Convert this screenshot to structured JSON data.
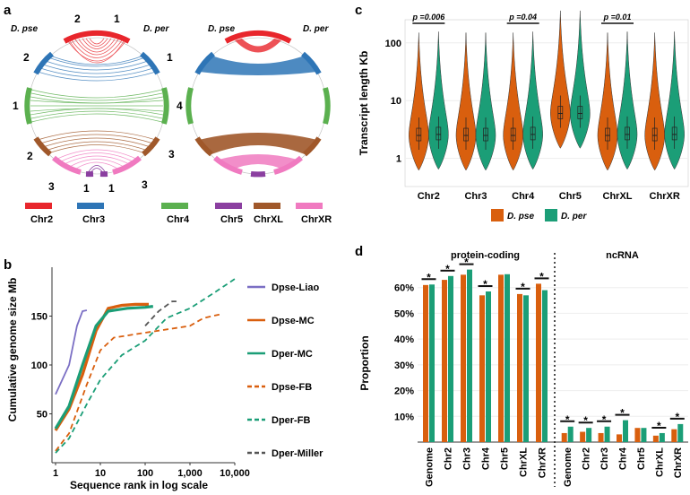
{
  "figure": {
    "panel_labels": {
      "a": "a",
      "b": "b",
      "c": "c",
      "d": "d"
    }
  },
  "panel_a": {
    "species_left": "D. pse",
    "species_right": "D. per",
    "species_left_2": "D. pse",
    "species_right_2": "D. per",
    "numbers": [
      "2",
      "1",
      "2",
      "1",
      "1",
      "4",
      "2",
      "3",
      "3",
      "1",
      "1",
      "3"
    ],
    "legend": [
      {
        "label": "Chr2",
        "color": "#e8262c"
      },
      {
        "label": "Chr3",
        "color": "#2e75b6"
      },
      {
        "label": "Chr4",
        "color": "#5bb04f"
      },
      {
        "label": "Chr5",
        "color": "#8b3fa0"
      },
      {
        "label": "ChrXL",
        "color": "#a0582a"
      },
      {
        "label": "ChrXR",
        "color": "#f07ac0"
      }
    ]
  },
  "chart_data": [
    {
      "id": "b",
      "type": "line",
      "title": "",
      "xlabel": "Sequence rank in log scale",
      "ylabel": "Cumulative genome size Mb",
      "xscale": "log",
      "xlim": [
        1,
        10000
      ],
      "ylim": [
        0,
        200
      ],
      "xticks": [
        "1",
        "10",
        "100",
        "1,000",
        "10,000"
      ],
      "yticks": [
        "50",
        "100",
        "150"
      ],
      "series": [
        {
          "name": "Dpse-Liao",
          "color": "#7b6fc4",
          "dash": "solid",
          "points": [
            [
              1,
              70
            ],
            [
              2,
              100
            ],
            [
              3,
              140
            ],
            [
              4,
              155
            ],
            [
              5,
              156
            ]
          ]
        },
        {
          "name": "Dpse-MC",
          "color": "#d95f0e",
          "dash": "solid",
          "points": [
            [
              1,
              33
            ],
            [
              2,
              55
            ],
            [
              4,
              90
            ],
            [
              8,
              135
            ],
            [
              15,
              158
            ],
            [
              30,
              161
            ],
            [
              60,
              162
            ],
            [
              120,
              162
            ]
          ]
        },
        {
          "name": "Dper-MC",
          "color": "#1b9e77",
          "dash": "solid",
          "points": [
            [
              1,
              35
            ],
            [
              2,
              58
            ],
            [
              4,
              100
            ],
            [
              8,
              140
            ],
            [
              15,
              155
            ],
            [
              40,
              158
            ],
            [
              100,
              159
            ],
            [
              150,
              160
            ]
          ]
        },
        {
          "name": "Dpse-FB",
          "color": "#d95f0e",
          "dash": "dashed",
          "points": [
            [
              1,
              12
            ],
            [
              2,
              30
            ],
            [
              5,
              80
            ],
            [
              10,
              115
            ],
            [
              20,
              128
            ],
            [
              100,
              133
            ],
            [
              1000,
              140
            ],
            [
              2000,
              148
            ],
            [
              5000,
              152
            ]
          ]
        },
        {
          "name": "Dper-FB",
          "color": "#1b9e77",
          "dash": "dashed",
          "points": [
            [
              1,
              10
            ],
            [
              2,
              25
            ],
            [
              5,
              60
            ],
            [
              10,
              85
            ],
            [
              30,
              110
            ],
            [
              100,
              125
            ],
            [
              300,
              148
            ],
            [
              1000,
              158
            ],
            [
              3000,
              172
            ],
            [
              10000,
              188
            ]
          ]
        },
        {
          "name": "Dper-Miller",
          "color": "#555555",
          "dash": "dashed",
          "points": [
            [
              100,
              140
            ],
            [
              200,
              155
            ],
            [
              400,
              165
            ],
            [
              500,
              165
            ]
          ]
        }
      ]
    },
    {
      "id": "c",
      "type": "violin",
      "xlabel": "",
      "ylabel": "Transcript length Kb",
      "yscale": "log",
      "yticks": [
        "1",
        "10",
        "100"
      ],
      "categories": [
        "Chr2",
        "Chr3",
        "Chr4",
        "Chr5",
        "ChrXL",
        "ChrXR"
      ],
      "series": [
        {
          "name": "D. pse",
          "color": "#d95f0e",
          "medians": [
            2.5,
            2.5,
            2.5,
            6,
            2.5,
            2.5
          ]
        },
        {
          "name": "D. per",
          "color": "#1b9e77",
          "medians": [
            2.6,
            2.5,
            2.6,
            6,
            2.6,
            2.6
          ]
        }
      ],
      "annotations": [
        {
          "category": "Chr2",
          "text": "p =0.006"
        },
        {
          "category": "Chr4",
          "text": "p =0.04"
        },
        {
          "category": "ChrXL",
          "text": "p =0.01"
        }
      ]
    },
    {
      "id": "d",
      "type": "bar",
      "ylabel": "Proportion",
      "yticks": [
        "10%",
        "20%",
        "30%",
        "40%",
        "50%",
        "60%"
      ],
      "ylim": [
        0,
        0.7
      ],
      "groups": [
        {
          "title": "protein-coding",
          "categories": [
            "Genome",
            "Chr2",
            "Chr3",
            "Chr4",
            "Chr5",
            "ChrXL",
            "ChrXR"
          ],
          "series": [
            {
              "name": "D. pse",
              "color": "#d95f0e",
              "values": [
                0.61,
                0.63,
                0.65,
                0.57,
                0.65,
                0.575,
                0.615
              ]
            },
            {
              "name": "D. per",
              "color": "#1b9e77",
              "values": [
                0.612,
                0.645,
                0.67,
                0.585,
                0.652,
                0.57,
                0.59
              ]
            }
          ],
          "significant": [
            true,
            true,
            true,
            true,
            false,
            true,
            true
          ]
        },
        {
          "title": "ncRNA",
          "categories": [
            "Genome",
            "Chr2",
            "Chr3",
            "Chr4",
            "Chr5",
            "ChrXL",
            "ChrXR"
          ],
          "series": [
            {
              "name": "D. pse",
              "color": "#d95f0e",
              "values": [
                0.035,
                0.04,
                0.035,
                0.03,
                0.055,
                0.025,
                0.05
              ]
            },
            {
              "name": "D. per",
              "color": "#1b9e77",
              "values": [
                0.06,
                0.055,
                0.06,
                0.085,
                0.055,
                0.035,
                0.07
              ]
            }
          ],
          "significant": [
            true,
            true,
            true,
            true,
            false,
            true,
            true
          ]
        }
      ],
      "star": "*"
    }
  ],
  "legend_c": {
    "pse": "D. pse",
    "per": "D. per"
  }
}
